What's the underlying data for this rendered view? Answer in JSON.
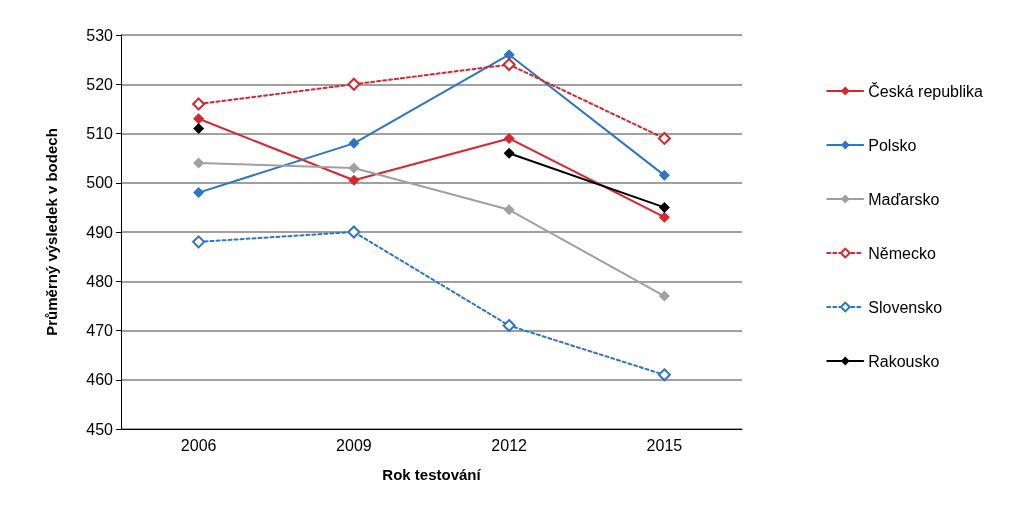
{
  "chart_data": {
    "type": "line",
    "xlabel": "Rok testování",
    "ylabel": "Průměrný výsledek v bodech",
    "categories": [
      "2006",
      "2009",
      "2012",
      "2015"
    ],
    "series": [
      {
        "name": "Česká republika",
        "color": "#d7262e",
        "values": [
          513,
          500.5,
          509,
          493
        ]
      },
      {
        "name": "Polsko",
        "color": "#2e75c6",
        "values": [
          498,
          508,
          526,
          501.5
        ]
      },
      {
        "name": "Maďarsko",
        "color": "#a0a0a0",
        "values": [
          504,
          503,
          494.5,
          477
        ]
      },
      {
        "name": "Německo",
        "color": "#d7262e",
        "line_style": "dotted",
        "values": [
          516,
          520,
          524,
          509
        ]
      },
      {
        "name": "Slovensko",
        "color": "#2e75c6",
        "line_style": "dotted",
        "values": [
          488,
          490,
          471,
          461
        ]
      },
      {
        "name": "Rakousko",
        "color": "#000000",
        "values": [
          511,
          null,
          506,
          495
        ]
      }
    ],
    "ylim": [
      450,
      530
    ],
    "yticks": [
      450,
      460,
      470,
      480,
      490,
      500,
      510,
      520,
      530
    ],
    "grid": "y",
    "legend": "right",
    "marker": "diamond",
    "line_style": "solid"
  }
}
